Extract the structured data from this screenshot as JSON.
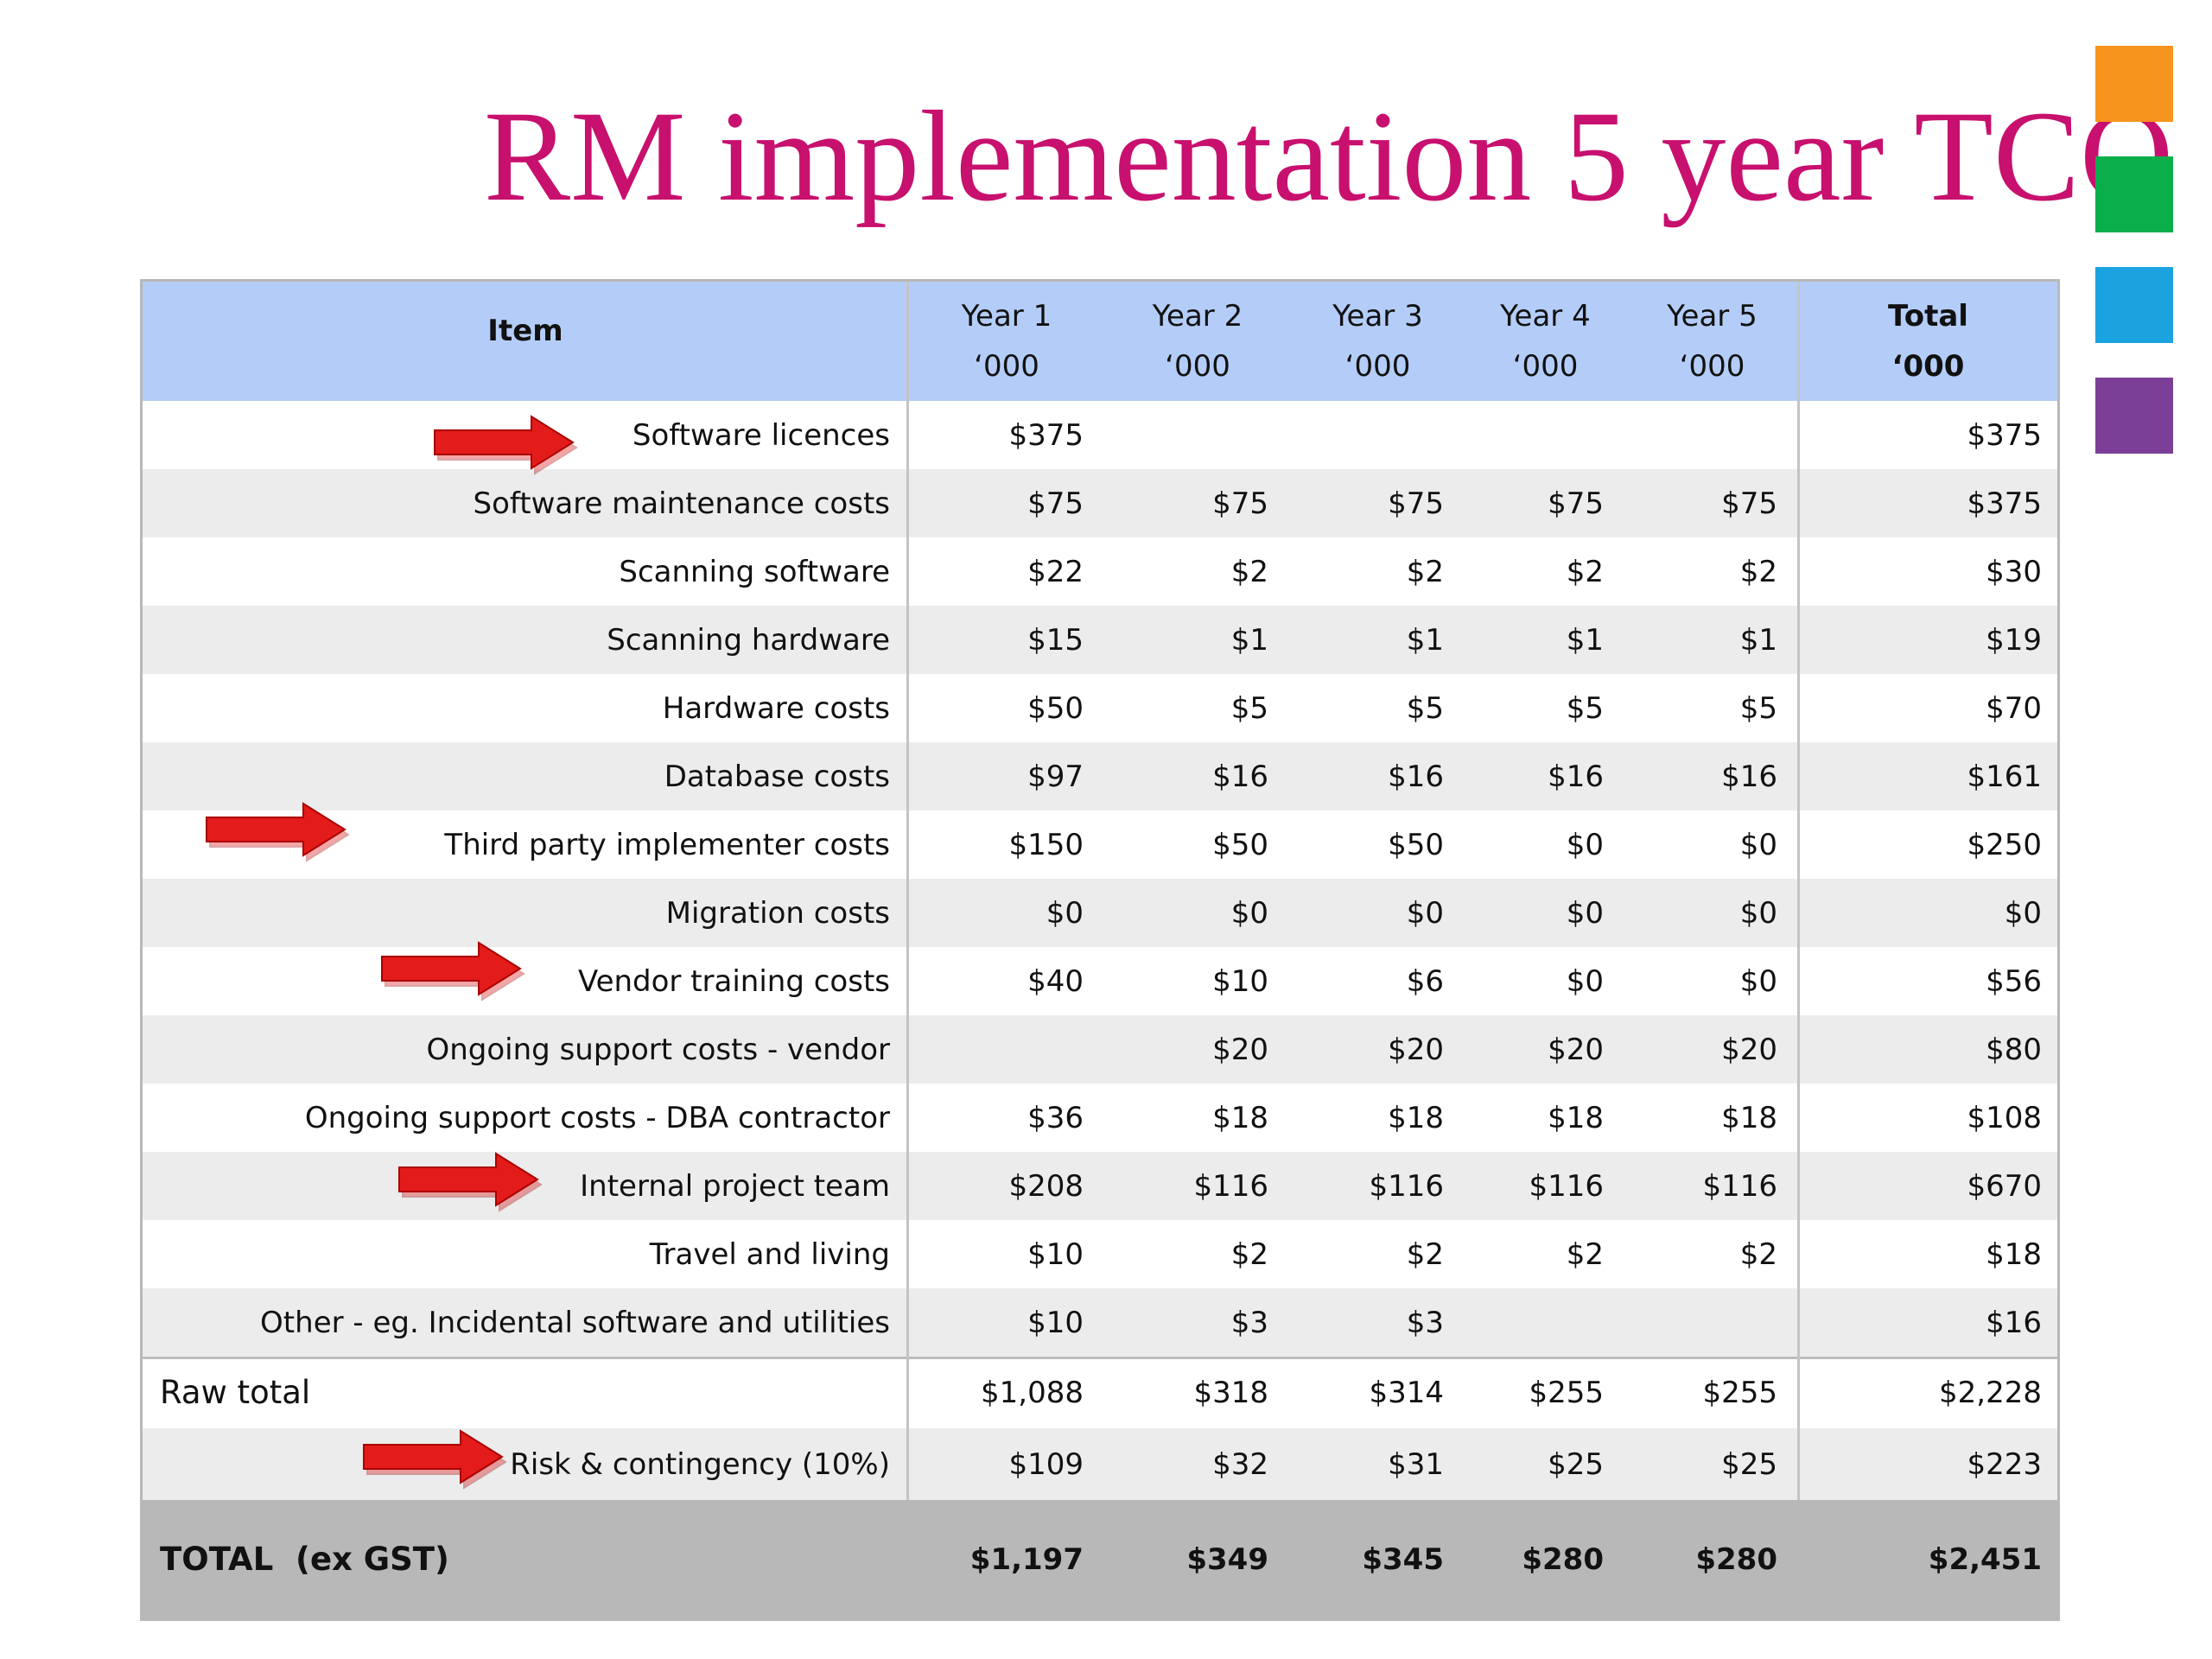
{
  "title": "RM implementation 5 year TCO",
  "table": {
    "header": [
      {
        "label": "Item"
      },
      {
        "label": "Year 1",
        "unit": "‘000"
      },
      {
        "label": "Year 2",
        "unit": "‘000"
      },
      {
        "label": "Year 3",
        "unit": "‘000"
      },
      {
        "label": "Year 4",
        "unit": "‘000"
      },
      {
        "label": "Year 5",
        "unit": "‘000"
      },
      {
        "label": "Total",
        "unit": "‘000"
      }
    ],
    "rows": [
      [
        "Software licences",
        "$375",
        null,
        null,
        null,
        null,
        "$375"
      ],
      [
        "Software maintenance costs",
        "$75",
        "$75",
        "$75",
        "$75",
        "$75",
        "$375"
      ],
      [
        "Scanning software",
        "$22",
        "$2",
        "$2",
        "$2",
        "$2",
        "$30"
      ],
      [
        "Scanning hardware",
        "$15",
        "$1",
        "$1",
        "$1",
        "$1",
        "$19"
      ],
      [
        "Hardware costs",
        "$50",
        "$5",
        "$5",
        "$5",
        "$5",
        "$70"
      ],
      [
        "Database costs",
        "$97",
        "$16",
        "$16",
        "$16",
        "$16",
        "$161"
      ],
      [
        "Third party implementer costs",
        "$150",
        "$50",
        "$50",
        "$0",
        "$0",
        "$250"
      ],
      [
        "Migration costs",
        "$0",
        "$0",
        "$0",
        "$0",
        "$0",
        "$0"
      ],
      [
        "Vendor training costs",
        "$40",
        "$10",
        "$6",
        "$0",
        "$0",
        "$56"
      ],
      [
        "Ongoing support costs - vendor",
        null,
        "$20",
        "$20",
        "$20",
        "$20",
        "$80"
      ],
      [
        "Ongoing support costs - DBA contractor",
        "$36",
        "$18",
        "$18",
        "$18",
        "$18",
        "$108"
      ],
      [
        "Internal project team",
        "$208",
        "$116",
        "$116",
        "$116",
        "$116",
        "$670"
      ],
      [
        "Travel and living",
        "$10",
        "$2",
        "$2",
        "$2",
        "$2",
        "$18"
      ],
      [
        "Other - eg. Incidental software and utilities",
        "$10",
        "$3",
        "$3",
        null,
        null,
        "$16"
      ]
    ],
    "summary_rows": [
      [
        "Raw total",
        "$1,088",
        "$318",
        "$314",
        "$255",
        "$255",
        "$2,228"
      ],
      [
        "Risk & contingency (10%)",
        "$109",
        "$32",
        "$31",
        "$25",
        "$25",
        "$223"
      ]
    ],
    "total_row": [
      "TOTAL  (ex GST)",
      "$1,197",
      "$349",
      "$345",
      "$280",
      "$280",
      "$2,451"
    ]
  }
}
